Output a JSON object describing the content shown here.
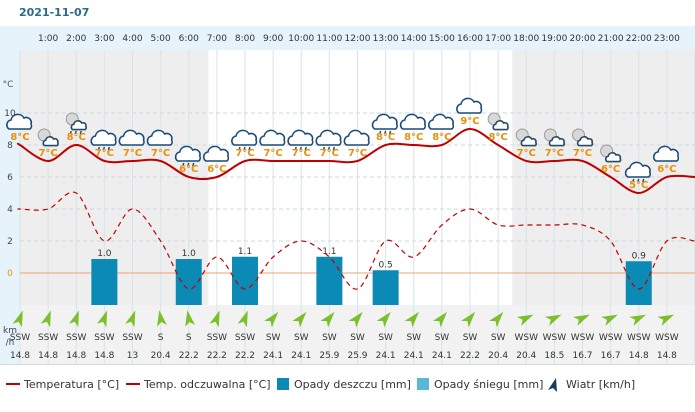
{
  "date": "2021-11-07",
  "colors": {
    "temp": "#c00000",
    "feels": "#c00000",
    "rain": "#0a8ab5",
    "snow": "#5ab8d6",
    "temp_label": "#e8900c",
    "wind_arrow": "#7cbf2a",
    "header_bg": "#e6f3fa",
    "night_bg": "#eeeeee",
    "day_bg": "#ffffff",
    "zero_line": "#f0a070"
  },
  "chart_data": {
    "type": "line",
    "hours": [
      "1:00",
      "2:00",
      "3:00",
      "4:00",
      "5:00",
      "6:00",
      "7:00",
      "8:00",
      "9:00",
      "10:00",
      "11:00",
      "12:00",
      "13:00",
      "14:00",
      "15:00",
      "16:00",
      "17:00",
      "18:00",
      "19:00",
      "20:00",
      "21:00",
      "22:00",
      "23:00"
    ],
    "x": [
      0.5,
      1.5,
      2.5,
      3.5,
      4.5,
      5.5,
      6.5,
      7.5,
      8.5,
      9.5,
      10.5,
      11.5,
      12.5,
      13.5,
      14.5,
      15.5,
      16.5,
      17.5,
      18.5,
      19.5,
      20.5,
      21.5,
      22.5,
      23.5
    ],
    "temperature": [
      8,
      7,
      8,
      7,
      7,
      7,
      6,
      6,
      7,
      7,
      7,
      7,
      7,
      8,
      8,
      8,
      9,
      8,
      7,
      7,
      7,
      6,
      5,
      6
    ],
    "temperature_labels": [
      "8°C",
      "7°C",
      "8°C",
      "7°C",
      "7°C",
      "7°C",
      "6°C",
      "6°C",
      "7°C",
      "7°C",
      "7°C",
      "7°C",
      "7°C",
      "8°C",
      "8°C",
      "8°C",
      "9°C",
      "8°C",
      "7°C",
      "7°C",
      "7°C",
      "6°C",
      "5°C",
      "6°C"
    ],
    "feels_like": [
      4,
      4,
      5,
      2,
      4,
      2,
      -1,
      1,
      -1,
      1,
      2,
      1,
      -1,
      2,
      1,
      3,
      4,
      3,
      3,
      3,
      3,
      2,
      -1,
      2
    ],
    "precip_rain": [
      0,
      0,
      0,
      1.0,
      0,
      0,
      1.0,
      0,
      1.1,
      0,
      0,
      1.1,
      0,
      0.5,
      0,
      0,
      0,
      0,
      0,
      0,
      0,
      0,
      0.9,
      0
    ],
    "precip_labels": [
      "",
      "",
      "",
      "1.0",
      "",
      "",
      "1.0",
      "",
      "1.1",
      "",
      "",
      "1.1",
      "",
      "0.5",
      "",
      "",
      "",
      "",
      "",
      "",
      "",
      "",
      "0.9",
      ""
    ],
    "wind_dir": [
      "SSW",
      "SSW",
      "SSW",
      "SSW",
      "SSW",
      "S",
      "S",
      "SSW",
      "SSW",
      "SW",
      "SW",
      "SW",
      "SW",
      "SW",
      "SW",
      "SW",
      "SW",
      "SW",
      "WSW",
      "WSW",
      "WSW",
      "WSW",
      "WSW",
      "WSW"
    ],
    "wind_speed": [
      "14.8",
      "14.8",
      "14.8",
      "14.8",
      "13",
      "20.4",
      "22.2",
      "22.2",
      "22.2",
      "24.1",
      "24.1",
      "25.9",
      "25.9",
      "24.1",
      "24.1",
      "24.1",
      "22.2",
      "20.4",
      "20.4",
      "18.5",
      "16.7",
      "16.7",
      "14.8",
      "14.8"
    ],
    "icons": [
      "cloud",
      "night-partly",
      "night-partly-rain",
      "cloud-rain",
      "cloud",
      "cloud",
      "cloud-rain",
      "cloud",
      "cloud-rain",
      "cloud",
      "cloud-rain",
      "cloud-rain",
      "cloud",
      "cloud-rain",
      "cloud",
      "cloud",
      "cloud",
      "night-partly",
      "night-partly",
      "night-partly",
      "night-partly",
      "night-partly",
      "cloud-rain",
      "cloud"
    ],
    "y_axis": {
      "unit": "°C",
      "ticks": [
        0,
        2,
        4,
        6,
        8,
        10
      ],
      "range": [
        -2,
        12
      ]
    },
    "wind_label": [
      "km",
      "/h"
    ],
    "grid": true
  },
  "legend": {
    "temperature": "Temperatura [°C]",
    "feels_like": "Temp. odczuwalna [°C]",
    "rain": "Opady deszczu [mm]",
    "snow": "Opady śniegu [mm]",
    "wind": "Wiatr [km/h]"
  }
}
